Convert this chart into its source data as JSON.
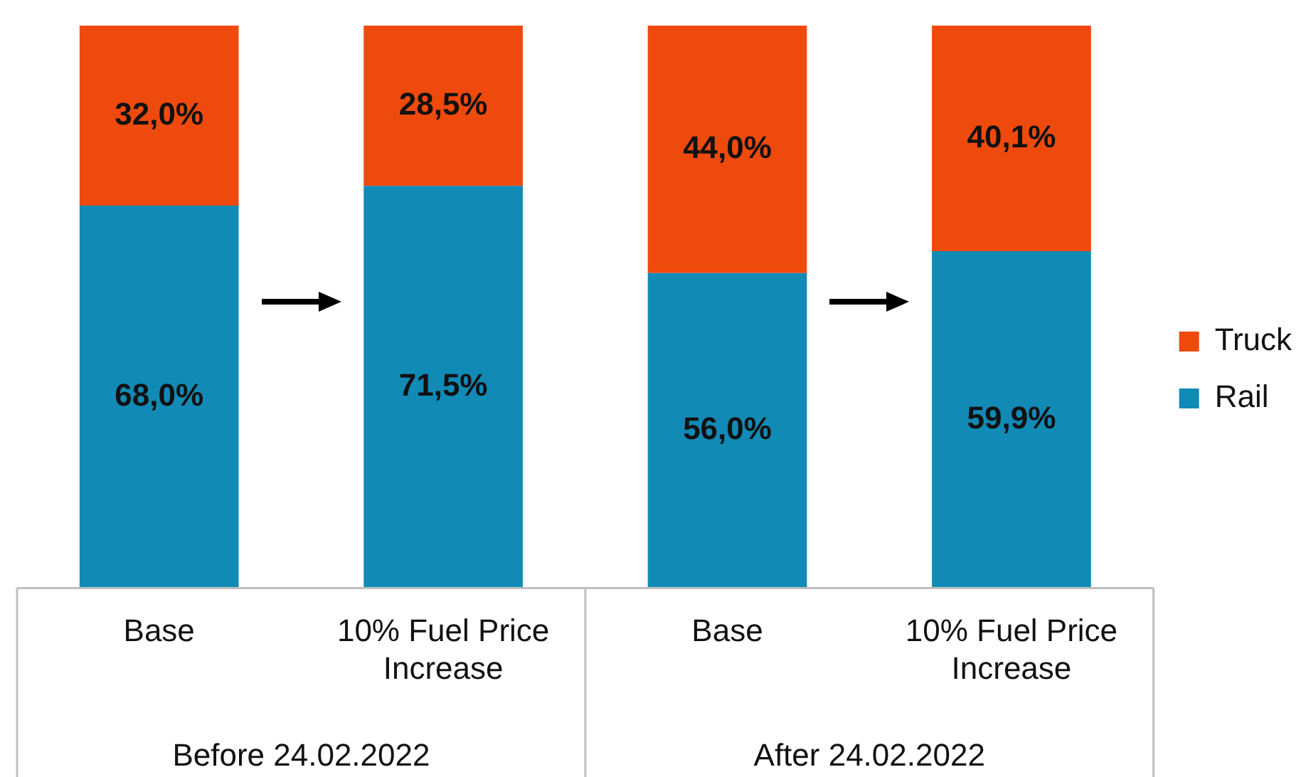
{
  "chart_data": {
    "type": "bar",
    "stacked": true,
    "categories": [
      "Base",
      "10% Fuel Price Increase",
      "Base",
      "10% Fuel Price Increase"
    ],
    "series": [
      {
        "name": "Rail",
        "color": "#118ab6",
        "values": [
          68.0,
          71.5,
          56.0,
          59.9
        ],
        "value_labels": [
          "68,0%",
          "71,5%",
          "56,0%",
          "59,9%"
        ]
      },
      {
        "name": "Truck",
        "color": "#ee4a0e",
        "values": [
          32.0,
          28.5,
          44.0,
          40.1
        ],
        "value_labels": [
          "32,0%",
          "28,5%",
          "44,0%",
          "40,1%"
        ]
      }
    ],
    "annotations": [
      "Before 24.02.2022",
      "After 24.02.2022"
    ],
    "legend": "right",
    "grid": false
  }
}
